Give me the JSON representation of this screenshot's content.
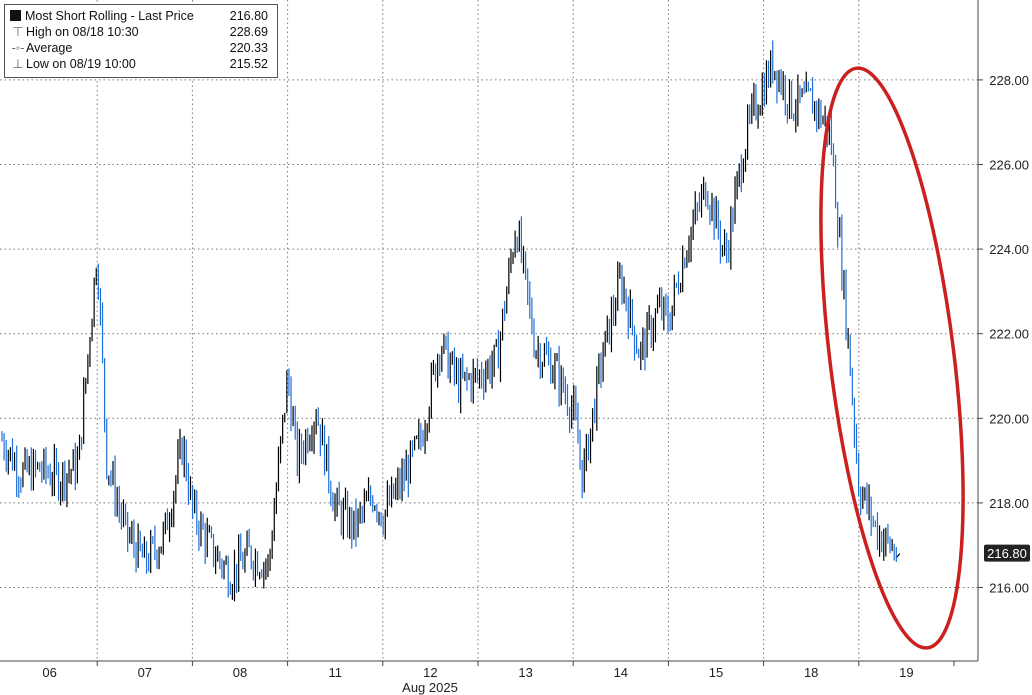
{
  "legend": {
    "series_name": "Most Short Rolling - Last Price",
    "last_value": "216.80",
    "high_label": "High on 08/18 10:30",
    "high_value": "228.69",
    "avg_label": "Average",
    "avg_value": "220.33",
    "low_label": "Low on 08/19 10:00",
    "low_value": "215.52"
  },
  "colors": {
    "up_candle": "#000000",
    "down_candle": "#1e6fd9",
    "annotation": "#cc1f1f",
    "grid": "#777777",
    "last_price_badge": "#222222"
  },
  "chart_data": {
    "type": "line",
    "title": "",
    "series": [
      {
        "name": "Most Short Rolling - Last Price",
        "x": [
          0.0,
          0.2,
          0.4,
          0.6,
          0.8,
          1.0,
          1.1,
          1.3,
          1.5,
          1.7,
          1.9,
          2.0,
          2.2,
          2.4,
          2.6,
          2.8,
          3.0,
          3.1,
          3.3,
          3.5,
          3.7,
          3.9,
          4.0,
          4.2,
          4.4,
          4.6,
          4.8,
          5.0,
          5.2,
          5.4,
          5.6,
          5.8,
          6.0,
          6.1,
          6.3,
          6.5,
          6.7,
          6.9,
          7.0,
          7.2,
          7.4,
          7.6,
          7.8,
          7.9,
          8.1,
          8.3,
          8.5,
          8.7,
          8.9,
          9.0,
          9.2,
          9.4
        ],
        "values": [
          219.5,
          218.7,
          218.8,
          218.6,
          218.9,
          224.0,
          219.0,
          217.3,
          216.6,
          217.2,
          219.4,
          217.8,
          216.9,
          216.3,
          216.8,
          216.5,
          221.0,
          219.0,
          220.2,
          217.9,
          217.4,
          218.2,
          217.7,
          218.5,
          219.5,
          221.8,
          220.8,
          221.0,
          221.4,
          224.6,
          221.7,
          221.2,
          220.2,
          218.6,
          221.4,
          223.3,
          221.5,
          222.6,
          222.3,
          224.2,
          225.5,
          223.8,
          226.5,
          227.3,
          228.4,
          227.4,
          227.5,
          226.8,
          221.5,
          218.4,
          217.3,
          216.8
        ]
      }
    ],
    "x_tick_labels": [
      "06",
      "07",
      "08",
      "11",
      "12",
      "13",
      "14",
      "15",
      "18",
      "19"
    ],
    "x_axis_label": "Aug 2025",
    "y_tick_labels": [
      "216.00",
      "218.00",
      "220.00",
      "222.00",
      "224.00",
      "226.00",
      "228.00"
    ],
    "ylim": [
      214.5,
      229.5
    ],
    "y_axis_side": "right",
    "grid": true,
    "legend_position": "top-left",
    "last_price_label": "216.80",
    "annotation": "red ellipse around the drop on 18-19 Aug"
  }
}
